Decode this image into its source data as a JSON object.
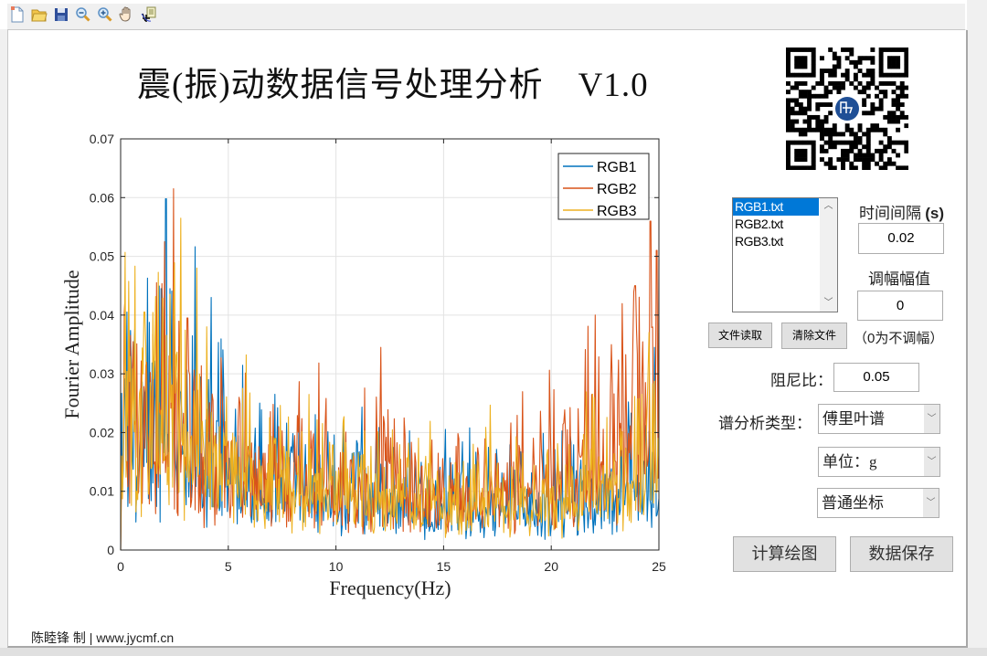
{
  "toolbar": {
    "icons": [
      "new-file-icon",
      "open-folder-icon",
      "save-icon",
      "zoom-out-icon",
      "zoom-in-icon",
      "pan-hand-icon",
      "data-cursor-icon"
    ]
  },
  "header": {
    "title": "震(振)动数据信号处理分析",
    "version": "V1.0"
  },
  "files": {
    "items": [
      "RGB1.txt",
      "RGB2.txt",
      "RGB3.txt"
    ],
    "selected_index": 0,
    "read_button": "文件读取",
    "clear_button": "清除文件"
  },
  "params": {
    "time_interval_label": "时间间隔",
    "time_interval_unit": "(s)",
    "time_interval_value": "0.02",
    "scale_amp_label": "调幅幅值",
    "scale_amp_value": "0",
    "scale_amp_hint": "（0为不调幅）",
    "damping_label": "阻尼比：",
    "damping_value": "0.05",
    "spectrum_type_label": "谱分析类型：",
    "spectrum_type_value": "傅里叶谱",
    "unit_value": "单位：g",
    "axis_type_value": "普通坐标"
  },
  "actions": {
    "compute_plot": "计算绘图",
    "save_data": "数据保存"
  },
  "footer": {
    "author": "陈睦锋 制",
    "separator": "|",
    "site": "www.jycmf.cn"
  },
  "chart_data": {
    "type": "line",
    "title": "",
    "xlabel": "Frequency(Hz)",
    "ylabel": "Fourier Amplitude",
    "xlim": [
      0,
      25
    ],
    "ylim": [
      0,
      0.07
    ],
    "xticks": [
      0,
      5,
      10,
      15,
      20,
      25
    ],
    "yticks": [
      0,
      0.01,
      0.02,
      0.03,
      0.04,
      0.05,
      0.06,
      0.07
    ],
    "ytick_labels": [
      "0",
      "0.01",
      "0.02",
      "0.03",
      "0.04",
      "0.05",
      "0.06",
      "0.07"
    ],
    "grid": true,
    "legend_position": "northeast",
    "series": [
      {
        "name": "RGB1",
        "color": "#0072BD",
        "envelope": [
          [
            0,
            0.026
          ],
          [
            2,
            0.03
          ],
          [
            4,
            0.022
          ],
          [
            6,
            0.016
          ],
          [
            10,
            0.013
          ],
          [
            15,
            0.011
          ],
          [
            20,
            0.01
          ],
          [
            23,
            0.013
          ],
          [
            25,
            0.016
          ]
        ],
        "peaks": [
          [
            2.1,
            0.0598
          ],
          [
            1.9,
            0.0445
          ],
          [
            4.2,
            0.043
          ],
          [
            0.3,
            0.0405
          ],
          [
            24.8,
            0.0345
          ]
        ]
      },
      {
        "name": "RGB2",
        "color": "#D95319",
        "envelope": [
          [
            0,
            0.024
          ],
          [
            2,
            0.03
          ],
          [
            4,
            0.022
          ],
          [
            6,
            0.017
          ],
          [
            10,
            0.015
          ],
          [
            15,
            0.013
          ],
          [
            18,
            0.014
          ],
          [
            21,
            0.02
          ],
          [
            23,
            0.027
          ],
          [
            25,
            0.032
          ]
        ],
        "peaks": [
          [
            2.45,
            0.0615
          ],
          [
            3.1,
            0.0395
          ],
          [
            0.2,
            0.043
          ],
          [
            12.1,
            0.0345
          ],
          [
            24.6,
            0.056
          ],
          [
            24.9,
            0.051
          ],
          [
            23.9,
            0.045
          ]
        ]
      },
      {
        "name": "RGB3",
        "color": "#EDB120",
        "envelope": [
          [
            0,
            0.025
          ],
          [
            2,
            0.029
          ],
          [
            4,
            0.022
          ],
          [
            6,
            0.017
          ],
          [
            10,
            0.014
          ],
          [
            15,
            0.012
          ],
          [
            20,
            0.011
          ],
          [
            23,
            0.016
          ],
          [
            25,
            0.02
          ]
        ],
        "peaks": [
          [
            2.8,
            0.0565
          ],
          [
            3.55,
            0.048
          ],
          [
            4.0,
            0.038
          ],
          [
            1.1,
            0.0405
          ],
          [
            22.0,
            0.026
          ]
        ]
      }
    ],
    "n_points": 600
  }
}
